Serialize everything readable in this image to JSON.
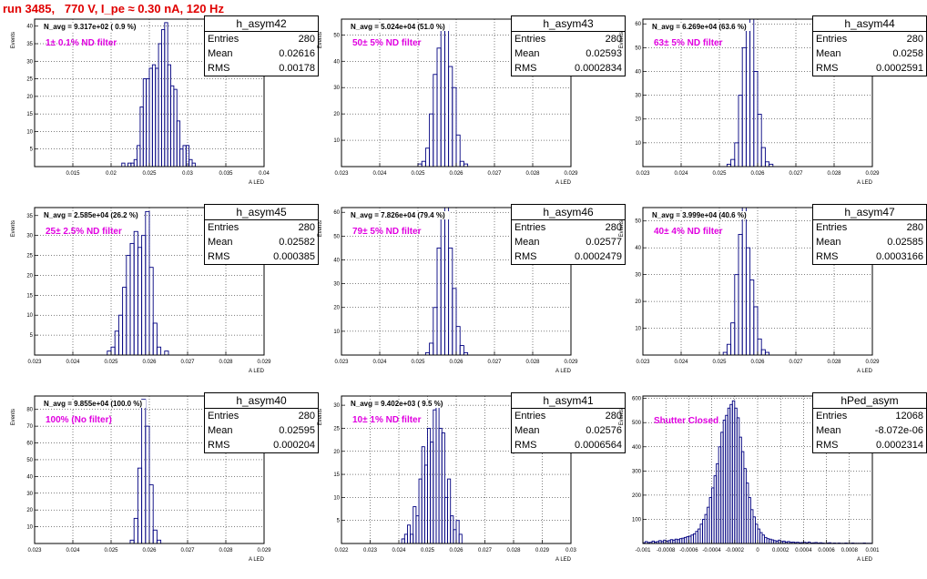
{
  "title": "run 3485,   770 V, I_pe ≈ 0.30 nA, 120 Hz",
  "stat_labels": {
    "entries": "Entries",
    "mean": "Mean",
    "rms": "RMS"
  },
  "colors": {
    "histogram": "#000080",
    "title": "#e00000",
    "annotation": "#e000e0",
    "grid": "#000000"
  },
  "chart_data": [
    {
      "type": "bar",
      "name": "h_asym42",
      "entries": "280",
      "mean": "0.02616",
      "rms": "0.00178",
      "n_avg": "N_avg = 9.317e+02 ( 0.9 %)",
      "annotation": "1± 0.1% ND filter",
      "ylabel": "Events",
      "xlabel": "A LED",
      "xlim": [
        0.01,
        0.04
      ],
      "ylim": [
        0,
        42
      ],
      "xticks": [
        0.015,
        0.02,
        0.025,
        0.03,
        0.035,
        0.04
      ],
      "xtick_labels": [
        "0.015",
        "0.02",
        "0.025",
        "0.03",
        "0.035",
        "0.04"
      ],
      "yticks": [
        5,
        10,
        15,
        20,
        25,
        30,
        35,
        40
      ],
      "ytick_labels": [
        "5",
        "10",
        "15",
        "20",
        "25",
        "30",
        "35",
        "40"
      ],
      "bin_start": 0.0214,
      "bin_width": 0.0004,
      "values": [
        1,
        0,
        1,
        1,
        2,
        6,
        17,
        25,
        25,
        28,
        29,
        28,
        35,
        39,
        41,
        29,
        23,
        22,
        13,
        5,
        6,
        6,
        2,
        1
      ]
    },
    {
      "type": "bar",
      "name": "h_asym43",
      "entries": "280",
      "mean": "0.02593",
      "rms": "0.0002834",
      "n_avg": "N_avg = 5.024e+04 (51.0 %)",
      "annotation": "50± 5% ND filter",
      "ylabel": "Events",
      "xlabel": "A LED",
      "xlim": [
        0.023,
        0.029
      ],
      "ylim": [
        0,
        56
      ],
      "xticks": [
        0.023,
        0.024,
        0.025,
        0.026,
        0.027,
        0.028,
        0.029
      ],
      "xtick_labels": [
        "0.023",
        "0.024",
        "0.025",
        "0.026",
        "0.027",
        "0.028",
        "0.029"
      ],
      "yticks": [
        10,
        20,
        30,
        40,
        50
      ],
      "ytick_labels": [
        "10",
        "20",
        "30",
        "40",
        "50"
      ],
      "bin_start": 0.025,
      "bin_width": 0.0001,
      "values": [
        1,
        2,
        7,
        20,
        35,
        45,
        53,
        54,
        38,
        30,
        12,
        2,
        1
      ]
    },
    {
      "type": "bar",
      "name": "h_asym44",
      "entries": "280",
      "mean": "0.0258",
      "rms": "0.0002591",
      "n_avg": "N_avg = 6.269e+04 (63.6 %)",
      "annotation": "63± 5% ND filter",
      "ylabel": "Events",
      "xlabel": "A LED",
      "xlim": [
        0.023,
        0.029
      ],
      "ylim": [
        0,
        62
      ],
      "xticks": [
        0.023,
        0.024,
        0.025,
        0.026,
        0.027,
        0.028,
        0.029
      ],
      "xtick_labels": [
        "0.023",
        "0.024",
        "0.025",
        "0.026",
        "0.027",
        "0.028",
        "0.029"
      ],
      "yticks": [
        10,
        20,
        30,
        40,
        50,
        60
      ],
      "ytick_labels": [
        "10",
        "20",
        "30",
        "40",
        "50",
        "60"
      ],
      "bin_start": 0.0252,
      "bin_width": 0.0001,
      "values": [
        1,
        3,
        10,
        30,
        50,
        60,
        62,
        40,
        22,
        8,
        2,
        1
      ]
    },
    {
      "type": "bar",
      "name": "h_asym45",
      "entries": "280",
      "mean": "0.02582",
      "rms": "0.000385",
      "n_avg": "N_avg = 2.585e+04 (26.2 %)",
      "annotation": "25± 2.5% ND filter",
      "ylabel": "Events",
      "xlabel": "A LED",
      "xlim": [
        0.023,
        0.029
      ],
      "ylim": [
        0,
        37
      ],
      "xticks": [
        0.023,
        0.024,
        0.025,
        0.026,
        0.027,
        0.028,
        0.029
      ],
      "xtick_labels": [
        "0.023",
        "0.024",
        "0.025",
        "0.026",
        "0.027",
        "0.028",
        "0.029"
      ],
      "yticks": [
        5,
        10,
        15,
        20,
        25,
        30,
        35
      ],
      "ytick_labels": [
        "5",
        "10",
        "15",
        "20",
        "25",
        "30",
        "35"
      ],
      "bin_start": 0.0249,
      "bin_width": 0.0001,
      "values": [
        1,
        2,
        6,
        10,
        17,
        25,
        28,
        31,
        27,
        30,
        36,
        22,
        8,
        2,
        0,
        1
      ]
    },
    {
      "type": "bar",
      "name": "h_asym46",
      "entries": "280",
      "mean": "0.02577",
      "rms": "0.0002479",
      "n_avg": "N_avg = 7.826e+04 (79.4 %)",
      "annotation": "79± 5% ND filter",
      "ylabel": "Events",
      "xlabel": "A LED",
      "xlim": [
        0.023,
        0.029
      ],
      "ylim": [
        0,
        62
      ],
      "xticks": [
        0.023,
        0.024,
        0.025,
        0.026,
        0.027,
        0.028,
        0.029
      ],
      "xtick_labels": [
        "0.023",
        "0.024",
        "0.025",
        "0.026",
        "0.027",
        "0.028",
        "0.029"
      ],
      "yticks": [
        10,
        20,
        30,
        40,
        50,
        60
      ],
      "ytick_labels": [
        "10",
        "20",
        "30",
        "40",
        "50",
        "60"
      ],
      "bin_start": 0.0252,
      "bin_width": 0.0001,
      "values": [
        1,
        5,
        20,
        45,
        58,
        62,
        45,
        28,
        12,
        4,
        1
      ]
    },
    {
      "type": "bar",
      "name": "h_asym47",
      "entries": "280",
      "mean": "0.02585",
      "rms": "0.0003166",
      "n_avg": "N_avg = 3.999e+04 (40.6 %)",
      "annotation": "40± 4% ND filter",
      "ylabel": "Events",
      "xlabel": "A LED",
      "xlim": [
        0.023,
        0.029
      ],
      "ylim": [
        0,
        55
      ],
      "xticks": [
        0.023,
        0.024,
        0.025,
        0.026,
        0.027,
        0.028,
        0.029
      ],
      "xtick_labels": [
        "0.023",
        "0.024",
        "0.025",
        "0.026",
        "0.027",
        "0.028",
        "0.029"
      ],
      "yticks": [
        10,
        20,
        30,
        40,
        50
      ],
      "ytick_labels": [
        "10",
        "20",
        "30",
        "40",
        "50"
      ],
      "bin_start": 0.0251,
      "bin_width": 0.0001,
      "values": [
        1,
        4,
        12,
        30,
        45,
        55,
        40,
        28,
        18,
        6,
        2,
        1
      ]
    },
    {
      "type": "bar",
      "name": "h_asym40",
      "entries": "280",
      "mean": "0.02595",
      "rms": "0.000204",
      "n_avg": "N_avg = 9.855e+04 (100.0 %)",
      "annotation": "100% (No filter)",
      "ylabel": "Events",
      "xlabel": "A LED",
      "xlim": [
        0.023,
        0.029
      ],
      "ylim": [
        0,
        88
      ],
      "xticks": [
        0.023,
        0.024,
        0.025,
        0.026,
        0.027,
        0.028,
        0.029
      ],
      "xtick_labels": [
        "0.023",
        "0.024",
        "0.025",
        "0.026",
        "0.027",
        "0.028",
        "0.029"
      ],
      "yticks": [
        10,
        20,
        30,
        40,
        50,
        60,
        70,
        80
      ],
      "ytick_labels": [
        "10",
        "20",
        "30",
        "40",
        "50",
        "60",
        "70",
        "80"
      ],
      "bin_start": 0.0255,
      "bin_width": 0.0001,
      "values": [
        2,
        15,
        45,
        86,
        70,
        35,
        8,
        2
      ]
    },
    {
      "type": "bar",
      "name": "h_asym41",
      "entries": "280",
      "mean": "0.02576",
      "rms": "0.0006564",
      "n_avg": "N_avg = 9.402e+03 ( 9.5 %)",
      "annotation": "10± 1% ND filter",
      "ylabel": "Events",
      "xlabel": "A LED",
      "xlim": [
        0.022,
        0.03
      ],
      "ylim": [
        0,
        32
      ],
      "xticks": [
        0.022,
        0.023,
        0.024,
        0.025,
        0.026,
        0.027,
        0.028,
        0.029,
        0.03
      ],
      "xtick_labels": [
        "0.022",
        "0.023",
        "0.024",
        "0.025",
        "0.026",
        "0.027",
        "0.028",
        "0.029",
        "0.03"
      ],
      "yticks": [
        5,
        10,
        15,
        20,
        25,
        30
      ],
      "ytick_labels": [
        "5",
        "10",
        "15",
        "20",
        "25",
        "30"
      ],
      "bin_start": 0.0241,
      "bin_width": 0.0001,
      "values": [
        1,
        2,
        4,
        2,
        8,
        6,
        14,
        21,
        17,
        25,
        22,
        29,
        31,
        25,
        24,
        10,
        14,
        6,
        3,
        5,
        2
      ]
    },
    {
      "type": "bar",
      "name": "hPed_asym",
      "entries": "12068",
      "mean": "-8.072e-06",
      "rms": "0.0002314",
      "n_avg": "",
      "annotation": "Shutter Closed",
      "ylabel": "Events",
      "xlabel": "A LED",
      "xlim": [
        -0.001,
        0.001
      ],
      "ylim": [
        0,
        610
      ],
      "xticks": [
        -0.001,
        -0.0008,
        -0.0006,
        -0.0004,
        -0.0002,
        0,
        0.0002,
        0.0004,
        0.0006,
        0.0008,
        0.001
      ],
      "xtick_labels": [
        "-0.001",
        "-0.0008",
        "-0.0006",
        "-0.0004",
        "-0.0002",
        "0",
        "0.0002",
        "0.0004",
        "0.0006",
        "0.0008",
        "0.001"
      ],
      "yticks": [
        100,
        200,
        300,
        400,
        500,
        600
      ],
      "ytick_labels": [
        "100",
        "200",
        "300",
        "400",
        "500",
        "600"
      ],
      "bin_start": -0.001,
      "bin_width": 2e-05,
      "values": [
        3,
        8,
        4,
        5,
        10,
        6,
        8,
        12,
        8,
        14,
        10,
        12,
        16,
        14,
        18,
        16,
        20,
        22,
        25,
        28,
        30,
        35,
        40,
        50,
        60,
        80,
        100,
        120,
        150,
        190,
        230,
        280,
        330,
        400,
        460,
        510,
        530,
        560,
        575,
        590,
        560,
        520,
        440,
        380,
        310,
        250,
        190,
        140,
        110,
        80,
        60,
        45,
        35,
        25,
        20,
        18,
        15,
        12,
        10,
        14,
        8,
        10,
        6,
        8,
        5,
        6,
        4,
        5,
        3,
        4,
        5,
        3,
        6,
        2,
        3,
        4,
        2,
        3,
        2,
        1,
        2,
        3,
        1,
        2,
        1,
        2,
        1,
        1,
        2,
        1,
        1,
        2,
        1,
        1,
        1,
        1,
        2,
        1,
        1,
        1
      ]
    }
  ]
}
